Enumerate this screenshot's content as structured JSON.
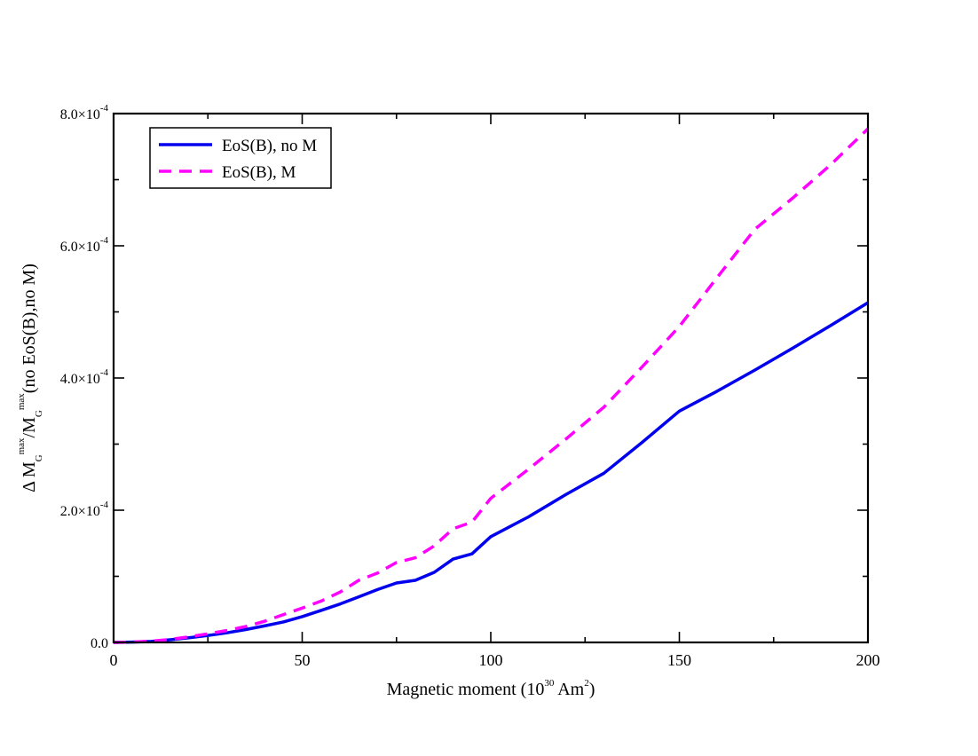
{
  "chart_data": {
    "type": "line",
    "title": "",
    "xlabel": {
      "pre": "Magnetic moment (10",
      "sup1": "30",
      "mid": " Am",
      "sup2": "2",
      "post": ")"
    },
    "ylabel": {
      "p1": "Δ M",
      "sub1": "G",
      "sup1": "max",
      "p2": "/M",
      "sub2": "G",
      "sup2": "max",
      "p3": "(no EoS(B),no M)"
    },
    "xlim": [
      0,
      200
    ],
    "ylim": [
      0,
      0.0008
    ],
    "x_ticks": [
      "0",
      "50",
      "100",
      "150",
      "200"
    ],
    "y_ticks": [
      {
        "mant": "0.0",
        "sup": ""
      },
      {
        "mant": "2.0×10",
        "sup": "-4"
      },
      {
        "mant": "4.0×10",
        "sup": "-4"
      },
      {
        "mant": "6.0×10",
        "sup": "-4"
      },
      {
        "mant": "8.0×10",
        "sup": "-4"
      }
    ],
    "legend_position": "top-left",
    "series": [
      {
        "name": "EoS(B), no M",
        "color": "#0000ee",
        "dash": "solid",
        "x": [
          0,
          5,
          10,
          15,
          20,
          25,
          30,
          35,
          40,
          45,
          50,
          55,
          60,
          65,
          70,
          75,
          80,
          85,
          90,
          95,
          100,
          110,
          120,
          130,
          140,
          150,
          160,
          170,
          180,
          190,
          200
        ],
        "y": [
          0,
          5e-07,
          1.5e-06,
          4e-06,
          7e-06,
          1.05e-05,
          1.45e-05,
          1.95e-05,
          2.5e-05,
          3.1e-05,
          3.9e-05,
          4.85e-05,
          5.8e-05,
          6.9e-05,
          8e-05,
          9e-05,
          9.4e-05,
          0.000106,
          0.000126,
          0.000134,
          0.00016,
          0.00019,
          0.000224,
          0.000256,
          0.000302,
          0.00035,
          0.00038,
          0.000412,
          0.000445,
          0.000479,
          0.000514
        ]
      },
      {
        "name": "EoS(B), M",
        "color": "#ff00ff",
        "dash": "dashed",
        "x": [
          0,
          5,
          10,
          15,
          20,
          25,
          30,
          35,
          40,
          45,
          50,
          55,
          60,
          65,
          70,
          75,
          80,
          85,
          90,
          95,
          100,
          110,
          120,
          130,
          140,
          150,
          160,
          170,
          180,
          190,
          200
        ],
        "y": [
          0,
          5e-07,
          2e-06,
          4.5e-06,
          8.5e-06,
          1.3e-05,
          1.8e-05,
          2.4e-05,
          3.2e-05,
          4.2e-05,
          5.2e-05,
          6.25e-05,
          7.6e-05,
          9.4e-05,
          0.000105,
          0.000121,
          0.000128,
          0.000146,
          0.000172,
          0.000182,
          0.000218,
          0.000262,
          0.000308,
          0.000356,
          0.000416,
          0.000478,
          0.000552,
          0.000625,
          0.000672,
          0.000722,
          0.000777
        ]
      }
    ]
  }
}
